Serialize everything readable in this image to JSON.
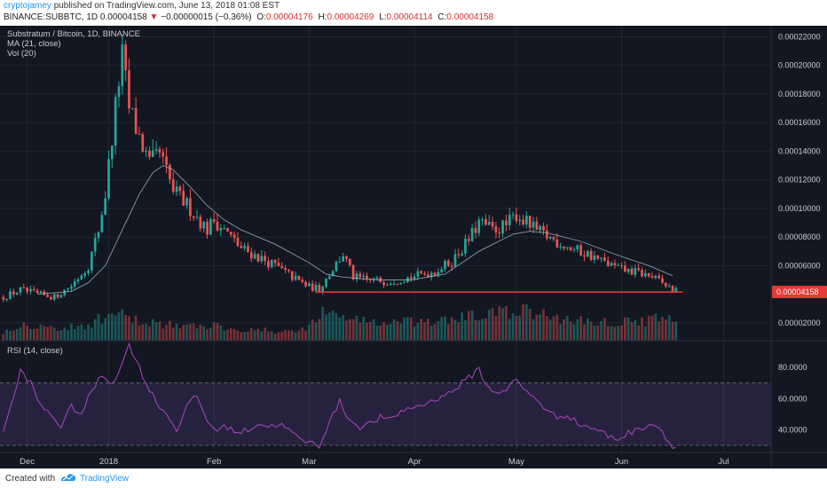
{
  "header": {
    "user": "cryptojamey",
    "published": "published on TradingView.com, June 13, 2018 01:08 EST",
    "symbol": "BINANCE:SUBBTC, 1D",
    "last": "0.00004158",
    "arrow": "▼",
    "change": "−0.00000015 (−0.36%)",
    "o_label": "O:",
    "o_value": "0.00004176",
    "h_label": "H:",
    "h_value": "0.00004269",
    "l_label": "L:",
    "l_value": "0.00004114",
    "c_label": "C:",
    "c_value": "0.00004158"
  },
  "footer": {
    "created": "Created with",
    "brand": "TradingView",
    "logo_icon": "tradingview-logo-icon"
  },
  "chart_data": {
    "type": "candlestick",
    "title": "Substratum / Bitcoin, 1D, BINANCE",
    "indicators": [
      "MA (21, close)",
      "Vol (20)"
    ],
    "price_ticks": [
      "0.00022000",
      "0.00020000",
      "0.00018000",
      "0.00016000",
      "0.00014000",
      "0.00012000",
      "0.00010000",
      "0.00008000",
      "0.00006000",
      "0.00002000"
    ],
    "price_range": [
      7.5e-06,
      0.000224
    ],
    "current_price_label": "0.00004158",
    "current_price": 4.158e-05,
    "support_line": 4.15e-05,
    "x_labels": [
      {
        "label": "Dec",
        "day": 7
      },
      {
        "label": "2018",
        "day": 31
      },
      {
        "label": "Feb",
        "day": 62
      },
      {
        "label": "Mar",
        "day": 90
      },
      {
        "label": "Apr",
        "day": 121
      },
      {
        "label": "May",
        "day": 151
      },
      {
        "label": "Jun",
        "day": 182
      },
      {
        "label": "Jul",
        "day": 212
      }
    ],
    "x_range": [
      -1,
      226
    ],
    "close_series": [
      [
        0,
        3.8e-05
      ],
      [
        5,
        4.3e-05
      ],
      [
        10,
        4e-05
      ],
      [
        15,
        3.8e-05
      ],
      [
        20,
        4.6e-05
      ],
      [
        25,
        6e-05
      ],
      [
        28,
        8.5e-05
      ],
      [
        30,
        0.00011
      ],
      [
        32,
        0.00015
      ],
      [
        34,
        0.00019
      ],
      [
        35,
        0.000205
      ],
      [
        37,
        0.00017
      ],
      [
        40,
        0.00015
      ],
      [
        43,
        0.00013
      ],
      [
        46,
        0.000138
      ],
      [
        50,
        0.000112
      ],
      [
        55,
        0.0001
      ],
      [
        60,
        8.5e-05
      ],
      [
        62,
        9.2e-05
      ],
      [
        65,
        8.5e-05
      ],
      [
        70,
        7.2e-05
      ],
      [
        75,
        6.6e-05
      ],
      [
        80,
        6e-05
      ],
      [
        85,
        5.2e-05
      ],
      [
        90,
        4.5e-05
      ],
      [
        93,
        4.4e-05
      ],
      [
        97,
        5.8e-05
      ],
      [
        100,
        6.8e-05
      ],
      [
        103,
        5.2e-05
      ],
      [
        107,
        5e-05
      ],
      [
        113,
        4.9e-05
      ],
      [
        120,
        5.2e-05
      ],
      [
        127,
        5.6e-05
      ],
      [
        132,
        6.3e-05
      ],
      [
        137,
        7.8e-05
      ],
      [
        140,
        9e-05
      ],
      [
        144,
        8.5e-05
      ],
      [
        148,
        8.8e-05
      ],
      [
        151,
        9.6e-05
      ],
      [
        154,
        9e-05
      ],
      [
        157,
        8.4e-05
      ],
      [
        162,
        7.8e-05
      ],
      [
        167,
        7.2e-05
      ],
      [
        172,
        6.8e-05
      ],
      [
        177,
        6.2e-05
      ],
      [
        182,
        5.7e-05
      ],
      [
        187,
        5.5e-05
      ],
      [
        191,
        5.2e-05
      ],
      [
        195,
        4.6e-05
      ],
      [
        198,
        4.2e-05
      ]
    ],
    "ma_series": [
      [
        10,
        4e-05
      ],
      [
        20,
        4.2e-05
      ],
      [
        25,
        4.8e-05
      ],
      [
        30,
        6e-05
      ],
      [
        35,
        8.5e-05
      ],
      [
        40,
        0.00011
      ],
      [
        44,
        0.000125
      ],
      [
        47,
        0.00013
      ],
      [
        50,
        0.000127
      ],
      [
        55,
        0.000115
      ],
      [
        60,
        0.000102
      ],
      [
        65,
        9.2e-05
      ],
      [
        70,
        8.5e-05
      ],
      [
        80,
        7.5e-05
      ],
      [
        90,
        6.2e-05
      ],
      [
        95,
        5.4e-05
      ],
      [
        100,
        5.2e-05
      ],
      [
        110,
        5e-05
      ],
      [
        120,
        5e-05
      ],
      [
        130,
        5.4e-05
      ],
      [
        140,
        7e-05
      ],
      [
        150,
        8.2e-05
      ],
      [
        155,
        8.4e-05
      ],
      [
        160,
        8.3e-05
      ],
      [
        170,
        7.7e-05
      ],
      [
        180,
        6.8e-05
      ],
      [
        190,
        6e-05
      ],
      [
        197,
        5.3e-05
      ]
    ],
    "volume_series": [
      [
        0,
        0.3
      ],
      [
        6,
        0.55
      ],
      [
        12,
        0.45
      ],
      [
        18,
        0.4
      ],
      [
        24,
        0.5
      ],
      [
        30,
        0.75
      ],
      [
        34,
        0.85
      ],
      [
        38,
        0.65
      ],
      [
        44,
        0.6
      ],
      [
        50,
        0.5
      ],
      [
        56,
        0.45
      ],
      [
        62,
        0.5
      ],
      [
        68,
        0.4
      ],
      [
        74,
        0.35
      ],
      [
        80,
        0.3
      ],
      [
        86,
        0.3
      ],
      [
        90,
        0.5
      ],
      [
        94,
        0.9
      ],
      [
        100,
        0.8
      ],
      [
        106,
        0.65
      ],
      [
        112,
        0.55
      ],
      [
        118,
        0.6
      ],
      [
        124,
        0.55
      ],
      [
        130,
        0.65
      ],
      [
        136,
        0.75
      ],
      [
        142,
        0.85
      ],
      [
        148,
        0.9
      ],
      [
        152,
        0.95
      ],
      [
        158,
        0.85
      ],
      [
        164,
        0.7
      ],
      [
        170,
        0.65
      ],
      [
        176,
        0.6
      ],
      [
        182,
        0.6
      ],
      [
        188,
        0.65
      ],
      [
        194,
        0.7
      ],
      [
        198,
        0.6
      ]
    ],
    "rsi": {
      "label": "RSI (14, close)",
      "ticks": [
        "80.0000",
        "60.0000",
        "40.0000"
      ],
      "range": [
        26,
        96
      ],
      "upper_band": 70,
      "lower_band": 30,
      "series": [
        [
          0,
          40
        ],
        [
          3,
          60
        ],
        [
          5,
          78
        ],
        [
          8,
          70
        ],
        [
          11,
          55
        ],
        [
          14,
          50
        ],
        [
          17,
          42
        ],
        [
          20,
          55
        ],
        [
          23,
          50
        ],
        [
          26,
          65
        ],
        [
          29,
          75
        ],
        [
          32,
          70
        ],
        [
          35,
          82
        ],
        [
          37,
          95
        ],
        [
          39,
          85
        ],
        [
          42,
          70
        ],
        [
          45,
          58
        ],
        [
          48,
          50
        ],
        [
          51,
          40
        ],
        [
          54,
          55
        ],
        [
          57,
          62
        ],
        [
          60,
          45
        ],
        [
          63,
          40
        ],
        [
          66,
          42
        ],
        [
          69,
          38
        ],
        [
          72,
          40
        ],
        [
          75,
          44
        ],
        [
          78,
          42
        ],
        [
          81,
          44
        ],
        [
          84,
          40
        ],
        [
          87,
          34
        ],
        [
          90,
          32
        ],
        [
          93,
          30
        ],
        [
          96,
          45
        ],
        [
          99,
          58
        ],
        [
          102,
          46
        ],
        [
          105,
          42
        ],
        [
          108,
          44
        ],
        [
          111,
          48
        ],
        [
          114,
          46
        ],
        [
          117,
          52
        ],
        [
          120,
          54
        ],
        [
          123,
          56
        ],
        [
          126,
          58
        ],
        [
          129,
          62
        ],
        [
          132,
          64
        ],
        [
          135,
          70
        ],
        [
          138,
          75
        ],
        [
          140,
          80
        ],
        [
          142,
          68
        ],
        [
          145,
          64
        ],
        [
          148,
          66
        ],
        [
          151,
          72
        ],
        [
          154,
          64
        ],
        [
          157,
          60
        ],
        [
          160,
          52
        ],
        [
          163,
          48
        ],
        [
          166,
          50
        ],
        [
          169,
          44
        ],
        [
          172,
          42
        ],
        [
          175,
          40
        ],
        [
          178,
          36
        ],
        [
          181,
          34
        ],
        [
          184,
          38
        ],
        [
          187,
          40
        ],
        [
          190,
          44
        ],
        [
          193,
          42
        ],
        [
          196,
          32
        ],
        [
          198,
          28
        ]
      ]
    },
    "colors": {
      "background": "#131722",
      "up": "#26a69a",
      "down": "#ef5350",
      "ma": "#aab6c8",
      "rsi": "#ab47bc",
      "rsi_band": "rgba(126,87,194,0.18)",
      "support": "#e53935",
      "grid": "#232734",
      "text": "#c8ccd4"
    }
  }
}
